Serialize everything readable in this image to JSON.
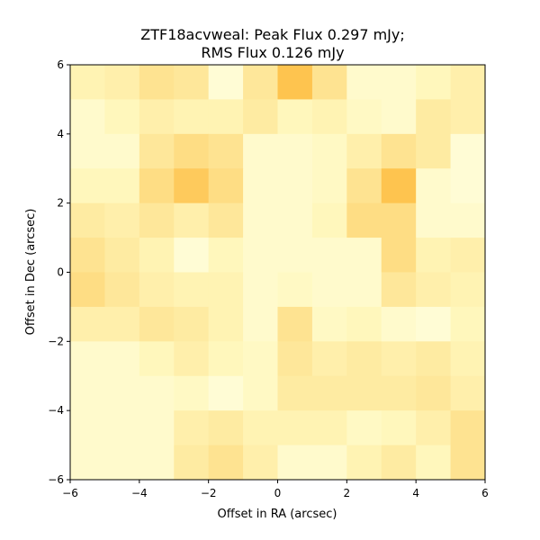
{
  "chart_data": {
    "type": "heatmap",
    "title_line1": "ZTF18acvweal: Peak Flux 0.297 mJy;",
    "title_line2": "RMS Flux 0.126 mJy",
    "xlabel": "Offset in RA (arcsec)",
    "ylabel": "Offset in Dec (arcsec)",
    "xlim": [
      -6,
      6
    ],
    "ylim": [
      -6,
      6
    ],
    "xticks": [
      -6,
      -4,
      -2,
      0,
      2,
      4,
      6
    ],
    "yticks": [
      -6,
      -4,
      -2,
      0,
      2,
      4,
      6
    ],
    "tick_labels": [
      "−6",
      "−4",
      "−2",
      "0",
      "2",
      "4",
      "6"
    ],
    "colormap": "YlOrBr",
    "colormap_stops": [
      "#ffffe5",
      "#fff7bc",
      "#fee391",
      "#fec44f",
      "#fe9929"
    ],
    "grid": false,
    "colorbar": false,
    "pixel_size_arcsec": 1,
    "rows_top_to_bottom": [
      [
        0.3,
        0.35,
        0.5,
        0.45,
        0.1,
        0.45,
        0.75,
        0.5,
        0.15,
        0.15,
        0.25,
        0.35
      ],
      [
        0.15,
        0.25,
        0.35,
        0.3,
        0.3,
        0.4,
        0.25,
        0.3,
        0.2,
        0.15,
        0.4,
        0.35
      ],
      [
        0.15,
        0.15,
        0.45,
        0.55,
        0.5,
        0.15,
        0.15,
        0.2,
        0.35,
        0.5,
        0.4,
        0.1
      ],
      [
        0.25,
        0.25,
        0.55,
        0.7,
        0.55,
        0.15,
        0.15,
        0.2,
        0.5,
        0.75,
        0.15,
        0.1
      ],
      [
        0.4,
        0.35,
        0.45,
        0.35,
        0.45,
        0.15,
        0.15,
        0.25,
        0.55,
        0.55,
        0.15,
        0.15
      ],
      [
        0.5,
        0.4,
        0.3,
        0.1,
        0.25,
        0.15,
        0.15,
        0.15,
        0.15,
        0.55,
        0.3,
        0.35
      ],
      [
        0.55,
        0.45,
        0.35,
        0.3,
        0.3,
        0.15,
        0.2,
        0.15,
        0.15,
        0.45,
        0.35,
        0.3
      ],
      [
        0.35,
        0.35,
        0.45,
        0.4,
        0.3,
        0.15,
        0.5,
        0.2,
        0.25,
        0.15,
        0.1,
        0.25
      ],
      [
        0.15,
        0.15,
        0.25,
        0.35,
        0.25,
        0.2,
        0.45,
        0.35,
        0.4,
        0.35,
        0.4,
        0.3
      ],
      [
        0.15,
        0.15,
        0.15,
        0.2,
        0.1,
        0.2,
        0.4,
        0.4,
        0.4,
        0.4,
        0.45,
        0.35
      ],
      [
        0.15,
        0.15,
        0.15,
        0.35,
        0.4,
        0.3,
        0.3,
        0.3,
        0.2,
        0.25,
        0.35,
        0.5
      ],
      [
        0.15,
        0.15,
        0.15,
        0.4,
        0.5,
        0.35,
        0.15,
        0.15,
        0.3,
        0.4,
        0.25,
        0.5
      ]
    ]
  }
}
